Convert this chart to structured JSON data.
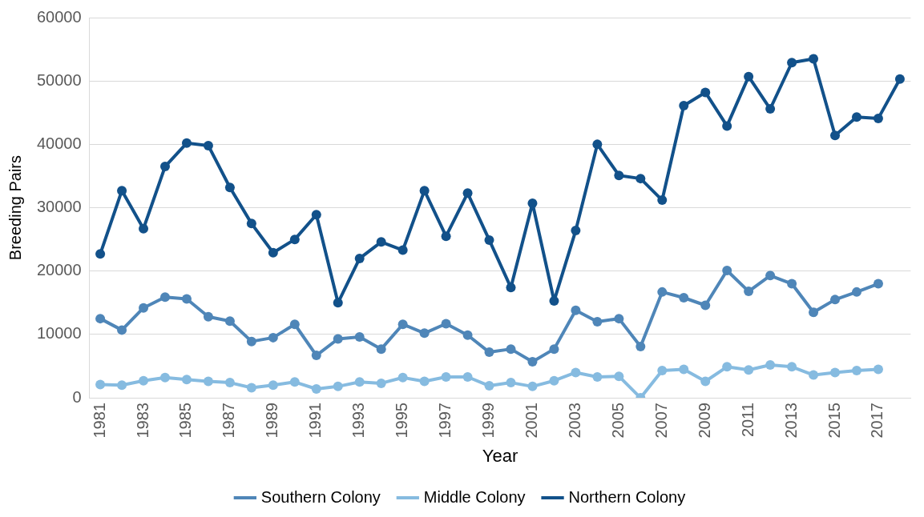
{
  "chart_data": {
    "type": "line",
    "xlabel": "Year",
    "ylabel": "Breeding Pairs",
    "categories": [
      "1981",
      null,
      "1983",
      null,
      "1985",
      null,
      "1987",
      null,
      "1989",
      null,
      "1991",
      null,
      "1993",
      null,
      "1995",
      null,
      "1997",
      null,
      "1999",
      null,
      "2001",
      null,
      "2003",
      null,
      "2005",
      null,
      "2007",
      null,
      "2009",
      null,
      "2011",
      null,
      "2013",
      null,
      "2015",
      null,
      "2017",
      null
    ],
    "series": [
      {
        "name": "Southern Colony",
        "color": "#4f86b8",
        "values": [
          12500,
          10700,
          14200,
          15900,
          15600,
          12800,
          12100,
          8900,
          9500,
          11600,
          6700,
          9300,
          9600,
          7700,
          11600,
          10200,
          11700,
          9900,
          7200,
          7700,
          5700,
          7700,
          13800,
          12000,
          12500,
          8100,
          16700,
          15800,
          14600,
          20100,
          16800,
          19300,
          18000,
          13500,
          15500,
          16700,
          18000,
          null
        ]
      },
      {
        "name": "Middle Colony",
        "color": "#86bbe0",
        "values": [
          2100,
          2000,
          2700,
          3200,
          2900,
          2600,
          2400,
          1600,
          2000,
          2500,
          1400,
          1800,
          2500,
          2300,
          3200,
          2600,
          3300,
          3300,
          1900,
          2400,
          1800,
          2700,
          4000,
          3300,
          3400,
          0,
          4300,
          4500,
          2600,
          4900,
          4400,
          5200,
          4900,
          3600,
          4000,
          4300,
          4500,
          null
        ]
      },
      {
        "name": "Northern Colony",
        "color": "#12518a",
        "values": [
          22700,
          32700,
          26700,
          36500,
          40200,
          39800,
          33200,
          27500,
          22900,
          25000,
          28900,
          15000,
          22000,
          24600,
          23300,
          32700,
          25500,
          32300,
          24900,
          17400,
          30700,
          15300,
          26400,
          40000,
          35100,
          34600,
          31200,
          46100,
          48200,
          42900,
          50700,
          45600,
          52900,
          53500,
          41400,
          44300,
          44100,
          50300
        ]
      }
    ],
    "ylim": [
      0,
      60000
    ],
    "yticks": [
      0,
      10000,
      20000,
      30000,
      40000,
      50000,
      60000
    ],
    "grid": "y",
    "legend": "bottom",
    "marker": "circle",
    "line_style": "solid"
  }
}
